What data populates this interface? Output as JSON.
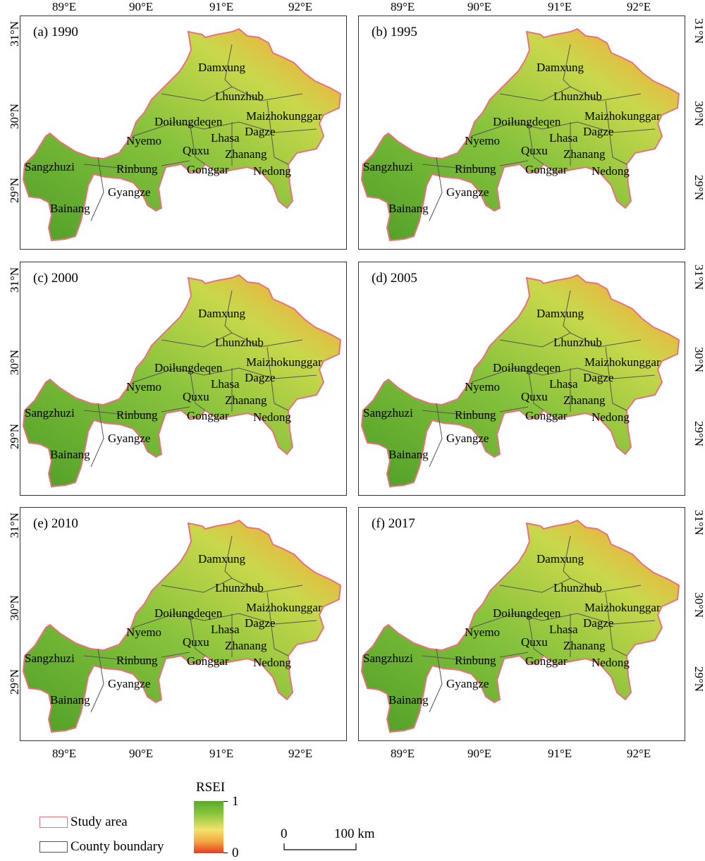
{
  "lon_ticks": [
    "89°E",
    "90°E",
    "91°E",
    "92°E"
  ],
  "lat_ticks": [
    "31°N",
    "30°N",
    "29°N"
  ],
  "panels": [
    {
      "title": "(a) 1990"
    },
    {
      "title": "(b) 1995"
    },
    {
      "title": "(c) 2000"
    },
    {
      "title": "(d) 2005"
    },
    {
      "title": "(e) 2010"
    },
    {
      "title": "(f) 2017"
    }
  ],
  "counties": [
    "Damxung",
    "Lhunzhub",
    "Maizhokunggar",
    "Doilungdeqen",
    "Dagze",
    "Lhasa",
    "Nyemo",
    "Quxu",
    "Zhanang",
    "Sangzhuzi",
    "Rinbung",
    "Gonggar",
    "Nedong",
    "Gyangze",
    "Bainang"
  ],
  "legend": {
    "study_area": "Study area",
    "county_boundary": "County boundary",
    "rsei_title": "RSEI",
    "rsei_max": "1",
    "rsei_min": "0",
    "scale_start": "0",
    "scale_end": "100 km",
    "colors": {
      "high": "#5aa82a",
      "mid": "#f3e36b",
      "low": "#e73a22",
      "study_area_outline": "#e8727a",
      "county_outline": "#555555"
    }
  }
}
